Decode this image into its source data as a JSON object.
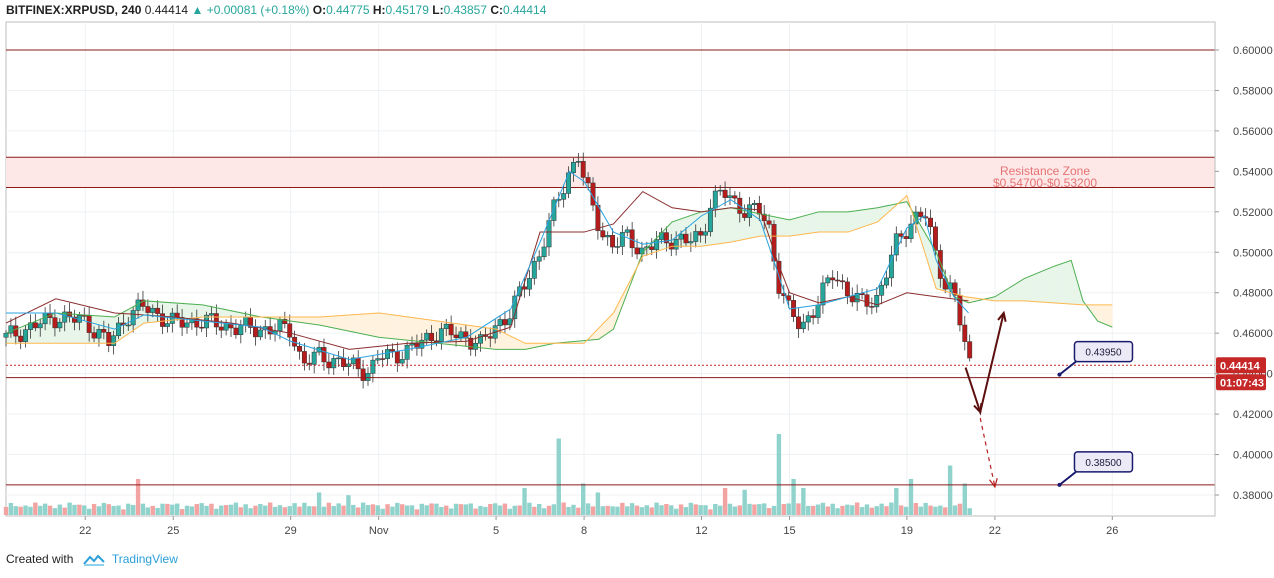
{
  "header": {
    "symbol": "BITFINEX:XRPUSD, 240",
    "last": "0.44414",
    "change": "+0.00081 (+0.18%)",
    "o_label": "O:",
    "o_val": "0.44775",
    "h_label": "H:",
    "h_val": "0.45179",
    "l_label": "L:",
    "l_val": "0.43857",
    "c_label": "C:",
    "c_val": "0.44414"
  },
  "footer": {
    "created_with": "Created with",
    "brand": "TradingView"
  },
  "colors": {
    "up": "#26a69a",
    "down": "#b71c1c",
    "resistance_line": "#8b1a1a",
    "resistance_fill": "#fde7e7",
    "cloud_green": "#e8f5e9",
    "cloud_orange": "#fff3e0",
    "tenkan": "#29a3e0",
    "kijun": "#8b2d2d",
    "span_a": "#4caf50",
    "span_b": "#ffb74d",
    "price_badge": "#c62828",
    "target_box_border": "#1a1a6e",
    "arrow": "#5d0f0f"
  },
  "chart_data": {
    "type": "candlestick",
    "yticks": [
      "0.60000",
      "0.58000",
      "0.56000",
      "0.54000",
      "0.52000",
      "0.50000",
      "0.48000",
      "0.46000",
      "0.44000",
      "0.42000",
      "0.40000",
      "0.38000"
    ],
    "ytick_values": [
      0.6,
      0.58,
      0.56,
      0.54,
      0.52,
      0.5,
      0.48,
      0.46,
      0.44,
      0.42,
      0.4,
      0.38
    ],
    "ylim": [
      0.372,
      0.613
    ],
    "xticks": [
      {
        "label": "22",
        "x": 22
      },
      {
        "label": "25",
        "x": 25
      },
      {
        "label": "29",
        "x": 29
      },
      {
        "label": "Nov",
        "x": 32
      },
      {
        "label": "5",
        "x": 36
      },
      {
        "label": "8",
        "x": 39
      },
      {
        "label": "12",
        "x": 43
      },
      {
        "label": "15",
        "x": 46
      },
      {
        "label": "19",
        "x": 50
      },
      {
        "label": "22",
        "x": 53
      },
      {
        "label": "26",
        "x": 57
      }
    ],
    "xlim": [
      19.3,
      60.5
    ],
    "last_bar_x": 52.1,
    "resistance_zone": {
      "label": "Resistance Zone",
      "range_label": "$0.54700-$0.53200",
      "top": 0.547,
      "bottom": 0.532
    },
    "horizontal_lines": [
      0.6,
      0.438,
      0.385
    ],
    "current_price": {
      "value": 0.44414,
      "label": "0.44414",
      "countdown": "01:07:43"
    },
    "targets": [
      {
        "label": "0.43950",
        "value": 0.4395,
        "anchor_x": 55.2,
        "anchor_y": 0.4395
      },
      {
        "label": "0.38500",
        "value": 0.385,
        "anchor_x": 55.2,
        "anchor_y": 0.385
      }
    ],
    "projection_solid": [
      [
        52.0,
        0.443
      ],
      [
        52.5,
        0.421
      ],
      [
        53.3,
        0.47
      ]
    ],
    "projection_dashed": [
      [
        52.5,
        0.421
      ],
      [
        53.0,
        0.384
      ]
    ],
    "price_path": [
      [
        19.3,
        0.458
      ],
      [
        20,
        0.462
      ],
      [
        21,
        0.468
      ],
      [
        22,
        0.466
      ],
      [
        22.8,
        0.455
      ],
      [
        23.5,
        0.47
      ],
      [
        24,
        0.473
      ],
      [
        25,
        0.465
      ],
      [
        26,
        0.466
      ],
      [
        27,
        0.463
      ],
      [
        28,
        0.462
      ],
      [
        29,
        0.462
      ],
      [
        29.4,
        0.445
      ],
      [
        30,
        0.449
      ],
      [
        31,
        0.444
      ],
      [
        31.7,
        0.441
      ],
      [
        32,
        0.448
      ],
      [
        33,
        0.451
      ],
      [
        34,
        0.461
      ],
      [
        35,
        0.458
      ],
      [
        35.5,
        0.454
      ],
      [
        36,
        0.464
      ],
      [
        36.5,
        0.47
      ],
      [
        37,
        0.485
      ],
      [
        37.5,
        0.5
      ],
      [
        38,
        0.522
      ],
      [
        38.5,
        0.54
      ],
      [
        38.8,
        0.548
      ],
      [
        39,
        0.535
      ],
      [
        39.3,
        0.522
      ],
      [
        39.6,
        0.51
      ],
      [
        40,
        0.503
      ],
      [
        40.5,
        0.508
      ],
      [
        41,
        0.5
      ],
      [
        41.5,
        0.505
      ],
      [
        42,
        0.507
      ],
      [
        42.5,
        0.505
      ],
      [
        43,
        0.508
      ],
      [
        43.3,
        0.524
      ],
      [
        43.7,
        0.53
      ],
      [
        44,
        0.526
      ],
      [
        44.5,
        0.521
      ],
      [
        45,
        0.52
      ],
      [
        45.3,
        0.512
      ],
      [
        45.6,
        0.486
      ],
      [
        46,
        0.47
      ],
      [
        46.4,
        0.463
      ],
      [
        47,
        0.476
      ],
      [
        47.5,
        0.49
      ],
      [
        48,
        0.48
      ],
      [
        48.5,
        0.474
      ],
      [
        49,
        0.478
      ],
      [
        49.3,
        0.49
      ],
      [
        49.6,
        0.503
      ],
      [
        50,
        0.512
      ],
      [
        50.3,
        0.518
      ],
      [
        50.6,
        0.52
      ],
      [
        51,
        0.497
      ],
      [
        51.3,
        0.485
      ],
      [
        51.6,
        0.481
      ],
      [
        52.1,
        0.444
      ]
    ],
    "tenkan_path": [
      [
        19.3,
        0.47
      ],
      [
        21,
        0.47
      ],
      [
        23,
        0.462
      ],
      [
        24,
        0.469
      ],
      [
        26,
        0.466
      ],
      [
        28,
        0.463
      ],
      [
        29,
        0.456
      ],
      [
        31,
        0.447
      ],
      [
        33,
        0.452
      ],
      [
        35,
        0.458
      ],
      [
        36.5,
        0.472
      ],
      [
        37.5,
        0.505
      ],
      [
        38.5,
        0.54
      ],
      [
        39,
        0.535
      ],
      [
        40,
        0.51
      ],
      [
        41,
        0.504
      ],
      [
        42,
        0.506
      ],
      [
        43,
        0.518
      ],
      [
        44,
        0.526
      ],
      [
        45,
        0.516
      ],
      [
        45.6,
        0.49
      ],
      [
        46,
        0.472
      ],
      [
        47,
        0.474
      ],
      [
        48,
        0.478
      ],
      [
        49,
        0.482
      ],
      [
        50,
        0.512
      ],
      [
        50.6,
        0.518
      ],
      [
        51,
        0.496
      ],
      [
        51.6,
        0.478
      ],
      [
        52.1,
        0.47
      ]
    ],
    "kijun_path": [
      [
        19.3,
        0.465
      ],
      [
        21,
        0.477
      ],
      [
        23,
        0.47
      ],
      [
        25,
        0.468
      ],
      [
        27,
        0.465
      ],
      [
        29,
        0.46
      ],
      [
        31,
        0.452
      ],
      [
        33,
        0.455
      ],
      [
        35,
        0.456
      ],
      [
        36.5,
        0.463
      ],
      [
        37.5,
        0.51
      ],
      [
        39,
        0.51
      ],
      [
        40,
        0.514
      ],
      [
        41,
        0.53
      ],
      [
        42,
        0.522
      ],
      [
        43,
        0.52
      ],
      [
        44,
        0.522
      ],
      [
        45,
        0.521
      ],
      [
        45.6,
        0.495
      ],
      [
        46,
        0.48
      ],
      [
        47,
        0.475
      ],
      [
        48,
        0.478
      ],
      [
        49,
        0.474
      ],
      [
        50,
        0.48
      ],
      [
        51,
        0.478
      ],
      [
        52.1,
        0.476
      ]
    ],
    "span_a_path": [
      [
        19.3,
        0.46
      ],
      [
        21,
        0.47
      ],
      [
        23,
        0.468
      ],
      [
        24,
        0.476
      ],
      [
        26,
        0.474
      ],
      [
        28,
        0.468
      ],
      [
        30,
        0.464
      ],
      [
        32,
        0.458
      ],
      [
        34,
        0.455
      ],
      [
        36,
        0.452
      ],
      [
        37,
        0.452
      ],
      [
        38,
        0.455
      ],
      [
        39.5,
        0.457
      ],
      [
        40,
        0.462
      ],
      [
        41,
        0.5
      ],
      [
        42,
        0.515
      ],
      [
        43,
        0.52
      ],
      [
        44,
        0.522
      ],
      [
        45,
        0.519
      ],
      [
        46,
        0.516
      ],
      [
        47,
        0.52
      ],
      [
        48,
        0.52
      ],
      [
        49,
        0.522
      ],
      [
        50,
        0.525
      ],
      [
        51,
        0.5
      ],
      [
        51.6,
        0.478
      ],
      [
        52.1,
        0.475
      ],
      [
        53,
        0.478
      ],
      [
        54,
        0.487
      ],
      [
        55,
        0.493
      ],
      [
        55.6,
        0.496
      ],
      [
        56,
        0.476
      ],
      [
        56.5,
        0.466
      ],
      [
        57,
        0.463
      ]
    ],
    "span_b_path": [
      [
        19.3,
        0.455
      ],
      [
        21,
        0.455
      ],
      [
        23,
        0.455
      ],
      [
        24,
        0.465
      ],
      [
        26,
        0.468
      ],
      [
        28,
        0.468
      ],
      [
        30,
        0.468
      ],
      [
        32,
        0.47
      ],
      [
        34,
        0.466
      ],
      [
        36,
        0.462
      ],
      [
        37,
        0.455
      ],
      [
        38,
        0.455
      ],
      [
        39,
        0.455
      ],
      [
        40,
        0.47
      ],
      [
        41,
        0.498
      ],
      [
        42,
        0.503
      ],
      [
        43,
        0.503
      ],
      [
        44,
        0.505
      ],
      [
        45,
        0.508
      ],
      [
        46,
        0.508
      ],
      [
        47,
        0.51
      ],
      [
        48,
        0.51
      ],
      [
        49,
        0.515
      ],
      [
        50,
        0.528
      ],
      [
        51,
        0.482
      ],
      [
        52,
        0.478
      ],
      [
        53,
        0.476
      ],
      [
        54,
        0.476
      ],
      [
        55,
        0.475
      ],
      [
        56,
        0.474
      ],
      [
        57,
        0.474
      ]
    ],
    "volume_max": 1.0,
    "volume_spikes": [
      [
        23.8,
        0.4
      ],
      [
        30.0,
        0.25
      ],
      [
        31.0,
        0.22
      ],
      [
        37.0,
        0.3
      ],
      [
        38.2,
        0.85
      ],
      [
        39.0,
        0.35
      ],
      [
        39.5,
        0.25
      ],
      [
        43.8,
        0.3
      ],
      [
        44.5,
        0.28
      ],
      [
        45.7,
        0.9
      ],
      [
        46.2,
        0.4
      ],
      [
        46.5,
        0.3
      ],
      [
        49.7,
        0.3
      ],
      [
        50.2,
        0.4
      ],
      [
        51.5,
        0.55
      ],
      [
        52.0,
        0.35
      ]
    ]
  }
}
